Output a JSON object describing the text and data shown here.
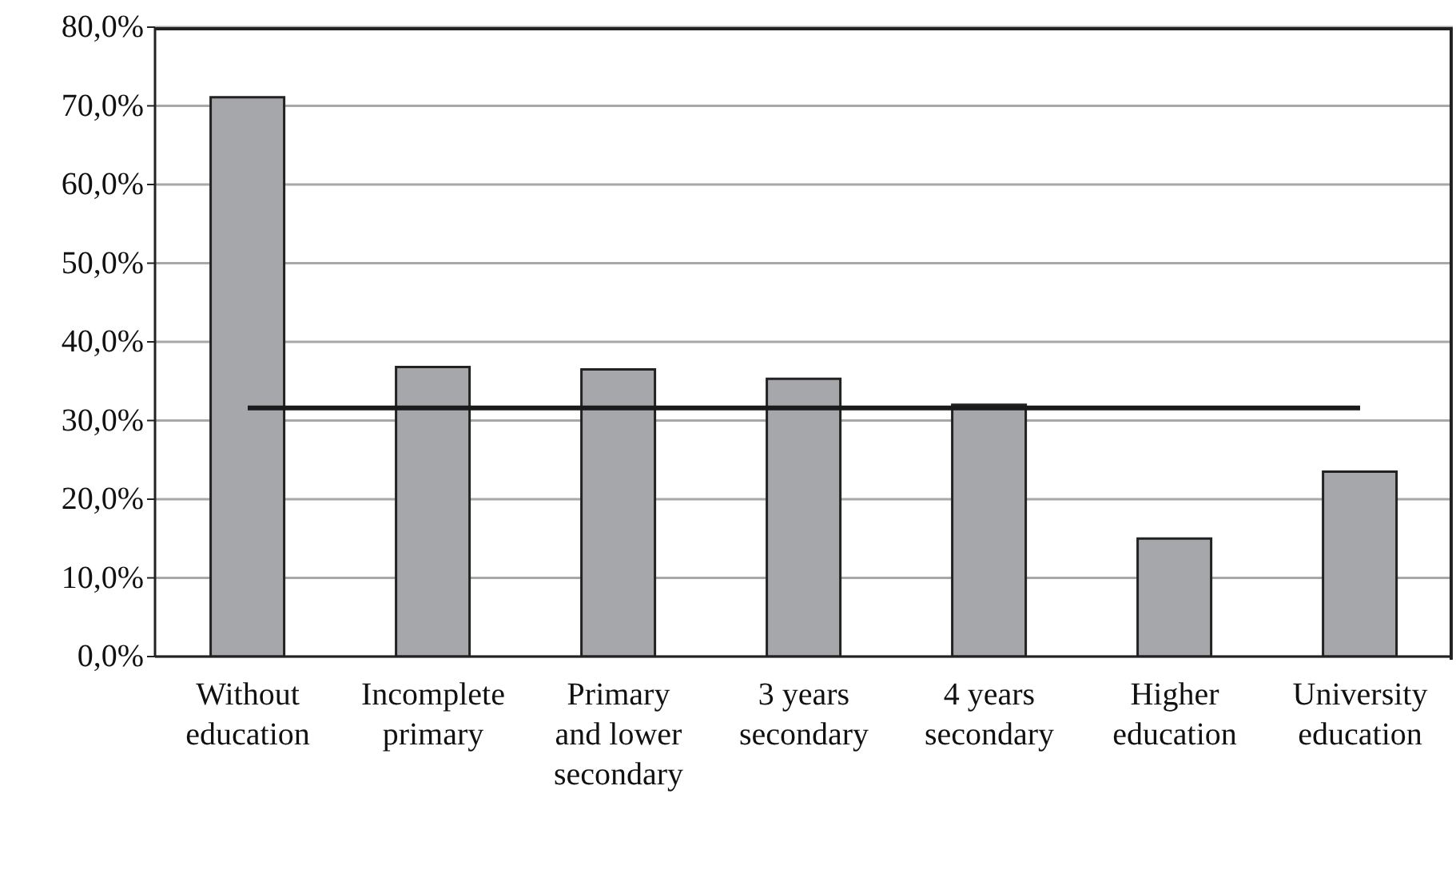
{
  "chart_data": {
    "type": "bar",
    "categories": [
      "Without education",
      "Incomplete primary",
      "Primary and lower secondary",
      "3 years secondary",
      "4 years secondary",
      "Higher education",
      "University education"
    ],
    "series": [
      {
        "color": "#a6a7ab",
        "values": [
          71.1,
          36.8,
          36.5,
          35.3,
          32.0,
          15.0,
          23.5
        ]
      },
      {
        "type": "line",
        "color": "#1a1a1a",
        "values": [
          31.6,
          31.6,
          31.6,
          31.6,
          31.6,
          31.6,
          31.6
        ]
      }
    ],
    "ylim": [
      0,
      80
    ],
    "yticks": [
      {
        "value": 0,
        "label": "0,0%"
      },
      {
        "value": 10,
        "label": "10,0%"
      },
      {
        "value": 20,
        "label": "20,0%"
      },
      {
        "value": 30,
        "label": "30,0%"
      },
      {
        "value": 40,
        "label": "40,0%"
      },
      {
        "value": 50,
        "label": "50,0%"
      },
      {
        "value": 60,
        "label": "60,0%"
      },
      {
        "value": 70,
        "label": "70,0%"
      },
      {
        "value": 80,
        "label": "80,0%"
      }
    ],
    "grid": "y"
  }
}
